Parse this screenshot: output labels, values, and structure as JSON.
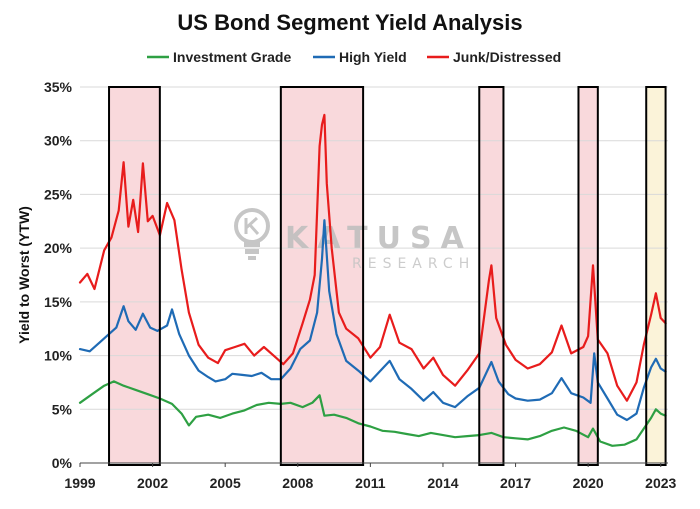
{
  "chart_data": {
    "type": "line",
    "title": "US Bond Segment Yield Analysis",
    "xlabel": "",
    "ylabel": "Yield to Worst (YTW)",
    "xlim": [
      1999,
      2023.3
    ],
    "ylim": [
      0,
      35
    ],
    "x_ticks": [
      "1999",
      "2002",
      "2005",
      "2008",
      "2011",
      "2014",
      "2017",
      "2020",
      "2023"
    ],
    "x_tick_values": [
      1999,
      2002,
      2005,
      2008,
      2011,
      2014,
      2017,
      2020,
      2023
    ],
    "y_ticks": [
      "0%",
      "5%",
      "10%",
      "15%",
      "20%",
      "25%",
      "30%",
      "35%"
    ],
    "y_tick_values": [
      0,
      5,
      10,
      15,
      20,
      25,
      30,
      35
    ],
    "grid": "horizontal",
    "legend_position": "top",
    "watermark": {
      "main": "KATUSA",
      "sub": "RESEARCH"
    },
    "highlight_periods": [
      {
        "start": 2000.2,
        "end": 2002.3,
        "fill": "#f9d9dc"
      },
      {
        "start": 2007.3,
        "end": 2010.7,
        "fill": "#f9d9dc"
      },
      {
        "start": 2015.5,
        "end": 2016.5,
        "fill": "#f9d9dc"
      },
      {
        "start": 2019.6,
        "end": 2020.4,
        "fill": "#f9d9dc"
      },
      {
        "start": 2022.4,
        "end": 2023.2,
        "fill": "#fbf3d9"
      }
    ],
    "series": [
      {
        "name": "Investment Grade",
        "color": "#2ea043",
        "points": [
          [
            1999.0,
            5.6
          ],
          [
            1999.5,
            6.4
          ],
          [
            2000.0,
            7.2
          ],
          [
            2000.4,
            7.6
          ],
          [
            2000.8,
            7.2
          ],
          [
            2001.3,
            6.8
          ],
          [
            2001.8,
            6.4
          ],
          [
            2002.3,
            6.0
          ],
          [
            2002.8,
            5.5
          ],
          [
            2003.2,
            4.6
          ],
          [
            2003.5,
            3.5
          ],
          [
            2003.8,
            4.3
          ],
          [
            2004.3,
            4.5
          ],
          [
            2004.8,
            4.2
          ],
          [
            2005.3,
            4.6
          ],
          [
            2005.8,
            4.9
          ],
          [
            2006.3,
            5.4
          ],
          [
            2006.8,
            5.6
          ],
          [
            2007.3,
            5.5
          ],
          [
            2007.7,
            5.6
          ],
          [
            2008.2,
            5.2
          ],
          [
            2008.6,
            5.6
          ],
          [
            2008.9,
            6.3
          ],
          [
            2009.1,
            4.4
          ],
          [
            2009.5,
            4.5
          ],
          [
            2010.0,
            4.2
          ],
          [
            2010.5,
            3.7
          ],
          [
            2011.0,
            3.4
          ],
          [
            2011.5,
            3.0
          ],
          [
            2012.0,
            2.9
          ],
          [
            2012.5,
            2.7
          ],
          [
            2013.0,
            2.5
          ],
          [
            2013.5,
            2.8
          ],
          [
            2014.0,
            2.6
          ],
          [
            2014.5,
            2.4
          ],
          [
            2015.0,
            2.5
          ],
          [
            2015.5,
            2.6
          ],
          [
            2016.0,
            2.8
          ],
          [
            2016.5,
            2.4
          ],
          [
            2017.0,
            2.3
          ],
          [
            2017.5,
            2.2
          ],
          [
            2018.0,
            2.5
          ],
          [
            2018.5,
            3.0
          ],
          [
            2019.0,
            3.3
          ],
          [
            2019.5,
            3.0
          ],
          [
            2020.0,
            2.4
          ],
          [
            2020.2,
            3.2
          ],
          [
            2020.5,
            2.0
          ],
          [
            2021.0,
            1.6
          ],
          [
            2021.5,
            1.7
          ],
          [
            2022.0,
            2.2
          ],
          [
            2022.3,
            3.2
          ],
          [
            2022.6,
            4.2
          ],
          [
            2022.8,
            5.0
          ],
          [
            2023.0,
            4.6
          ],
          [
            2023.2,
            4.4
          ]
        ]
      },
      {
        "name": "High Yield",
        "color": "#1f6bb5",
        "points": [
          [
            1999.0,
            10.6
          ],
          [
            1999.4,
            10.4
          ],
          [
            1999.8,
            11.2
          ],
          [
            2000.2,
            12.0
          ],
          [
            2000.5,
            12.6
          ],
          [
            2000.8,
            14.6
          ],
          [
            2001.0,
            13.2
          ],
          [
            2001.3,
            12.4
          ],
          [
            2001.6,
            13.9
          ],
          [
            2001.9,
            12.6
          ],
          [
            2002.2,
            12.3
          ],
          [
            2002.6,
            12.8
          ],
          [
            2002.8,
            14.3
          ],
          [
            2003.1,
            12.0
          ],
          [
            2003.5,
            10.0
          ],
          [
            2003.9,
            8.6
          ],
          [
            2004.3,
            8.0
          ],
          [
            2004.6,
            7.6
          ],
          [
            2005.0,
            7.8
          ],
          [
            2005.3,
            8.3
          ],
          [
            2005.7,
            8.2
          ],
          [
            2006.1,
            8.1
          ],
          [
            2006.5,
            8.4
          ],
          [
            2006.9,
            7.8
          ],
          [
            2007.3,
            7.8
          ],
          [
            2007.7,
            8.8
          ],
          [
            2008.1,
            10.6
          ],
          [
            2008.5,
            11.4
          ],
          [
            2008.8,
            14.0
          ],
          [
            2009.0,
            19.0
          ],
          [
            2009.1,
            22.6
          ],
          [
            2009.3,
            16.0
          ],
          [
            2009.6,
            12.0
          ],
          [
            2010.0,
            9.5
          ],
          [
            2010.5,
            8.6
          ],
          [
            2011.0,
            7.6
          ],
          [
            2011.5,
            8.8
          ],
          [
            2011.8,
            9.5
          ],
          [
            2012.2,
            7.8
          ],
          [
            2012.7,
            6.9
          ],
          [
            2013.2,
            5.8
          ],
          [
            2013.6,
            6.6
          ],
          [
            2014.0,
            5.6
          ],
          [
            2014.5,
            5.2
          ],
          [
            2015.0,
            6.2
          ],
          [
            2015.5,
            7.0
          ],
          [
            2016.0,
            9.4
          ],
          [
            2016.3,
            7.6
          ],
          [
            2016.7,
            6.4
          ],
          [
            2017.0,
            6.0
          ],
          [
            2017.5,
            5.8
          ],
          [
            2018.0,
            5.9
          ],
          [
            2018.5,
            6.5
          ],
          [
            2018.9,
            7.9
          ],
          [
            2019.3,
            6.5
          ],
          [
            2019.8,
            6.1
          ],
          [
            2020.1,
            5.6
          ],
          [
            2020.25,
            10.2
          ],
          [
            2020.4,
            7.5
          ],
          [
            2020.8,
            6.0
          ],
          [
            2021.2,
            4.5
          ],
          [
            2021.6,
            4.0
          ],
          [
            2022.0,
            4.6
          ],
          [
            2022.3,
            7.0
          ],
          [
            2022.6,
            8.9
          ],
          [
            2022.8,
            9.7
          ],
          [
            2023.0,
            8.8
          ],
          [
            2023.2,
            8.5
          ]
        ]
      },
      {
        "name": "Junk/Distressed",
        "color": "#e81c1c",
        "points": [
          [
            1999.0,
            16.8
          ],
          [
            1999.3,
            17.6
          ],
          [
            1999.6,
            16.2
          ],
          [
            2000.0,
            19.8
          ],
          [
            2000.3,
            21.0
          ],
          [
            2000.6,
            23.5
          ],
          [
            2000.8,
            28.0
          ],
          [
            2001.0,
            22.0
          ],
          [
            2001.2,
            24.5
          ],
          [
            2001.4,
            21.5
          ],
          [
            2001.6,
            27.9
          ],
          [
            2001.8,
            22.5
          ],
          [
            2002.0,
            23.0
          ],
          [
            2002.3,
            21.2
          ],
          [
            2002.6,
            24.2
          ],
          [
            2002.9,
            22.6
          ],
          [
            2003.2,
            18.0
          ],
          [
            2003.5,
            14.0
          ],
          [
            2003.9,
            11.0
          ],
          [
            2004.3,
            9.8
          ],
          [
            2004.7,
            9.3
          ],
          [
            2005.0,
            10.5
          ],
          [
            2005.4,
            10.8
          ],
          [
            2005.8,
            11.1
          ],
          [
            2006.2,
            10.0
          ],
          [
            2006.6,
            10.8
          ],
          [
            2007.0,
            10.0
          ],
          [
            2007.4,
            9.2
          ],
          [
            2007.8,
            10.2
          ],
          [
            2008.2,
            13.0
          ],
          [
            2008.5,
            15.2
          ],
          [
            2008.7,
            17.5
          ],
          [
            2008.9,
            29.5
          ],
          [
            2009.0,
            31.5
          ],
          [
            2009.1,
            32.4
          ],
          [
            2009.2,
            26.0
          ],
          [
            2009.4,
            20.0
          ],
          [
            2009.7,
            14.0
          ],
          [
            2010.0,
            12.5
          ],
          [
            2010.5,
            11.6
          ],
          [
            2011.0,
            9.8
          ],
          [
            2011.4,
            10.8
          ],
          [
            2011.8,
            13.8
          ],
          [
            2012.2,
            11.2
          ],
          [
            2012.7,
            10.6
          ],
          [
            2013.2,
            8.8
          ],
          [
            2013.6,
            9.8
          ],
          [
            2014.0,
            8.2
          ],
          [
            2014.5,
            7.2
          ],
          [
            2015.0,
            8.6
          ],
          [
            2015.5,
            10.2
          ],
          [
            2015.9,
            17.0
          ],
          [
            2016.0,
            18.4
          ],
          [
            2016.2,
            13.5
          ],
          [
            2016.6,
            11.0
          ],
          [
            2017.0,
            9.6
          ],
          [
            2017.5,
            8.8
          ],
          [
            2018.0,
            9.2
          ],
          [
            2018.5,
            10.3
          ],
          [
            2018.9,
            12.8
          ],
          [
            2019.3,
            10.2
          ],
          [
            2019.8,
            10.8
          ],
          [
            2020.0,
            11.8
          ],
          [
            2020.2,
            18.4
          ],
          [
            2020.4,
            11.5
          ],
          [
            2020.8,
            10.2
          ],
          [
            2021.2,
            7.2
          ],
          [
            2021.6,
            5.8
          ],
          [
            2022.0,
            7.5
          ],
          [
            2022.3,
            11.0
          ],
          [
            2022.6,
            13.8
          ],
          [
            2022.8,
            15.8
          ],
          [
            2023.0,
            13.5
          ],
          [
            2023.2,
            13.0
          ]
        ]
      }
    ]
  }
}
